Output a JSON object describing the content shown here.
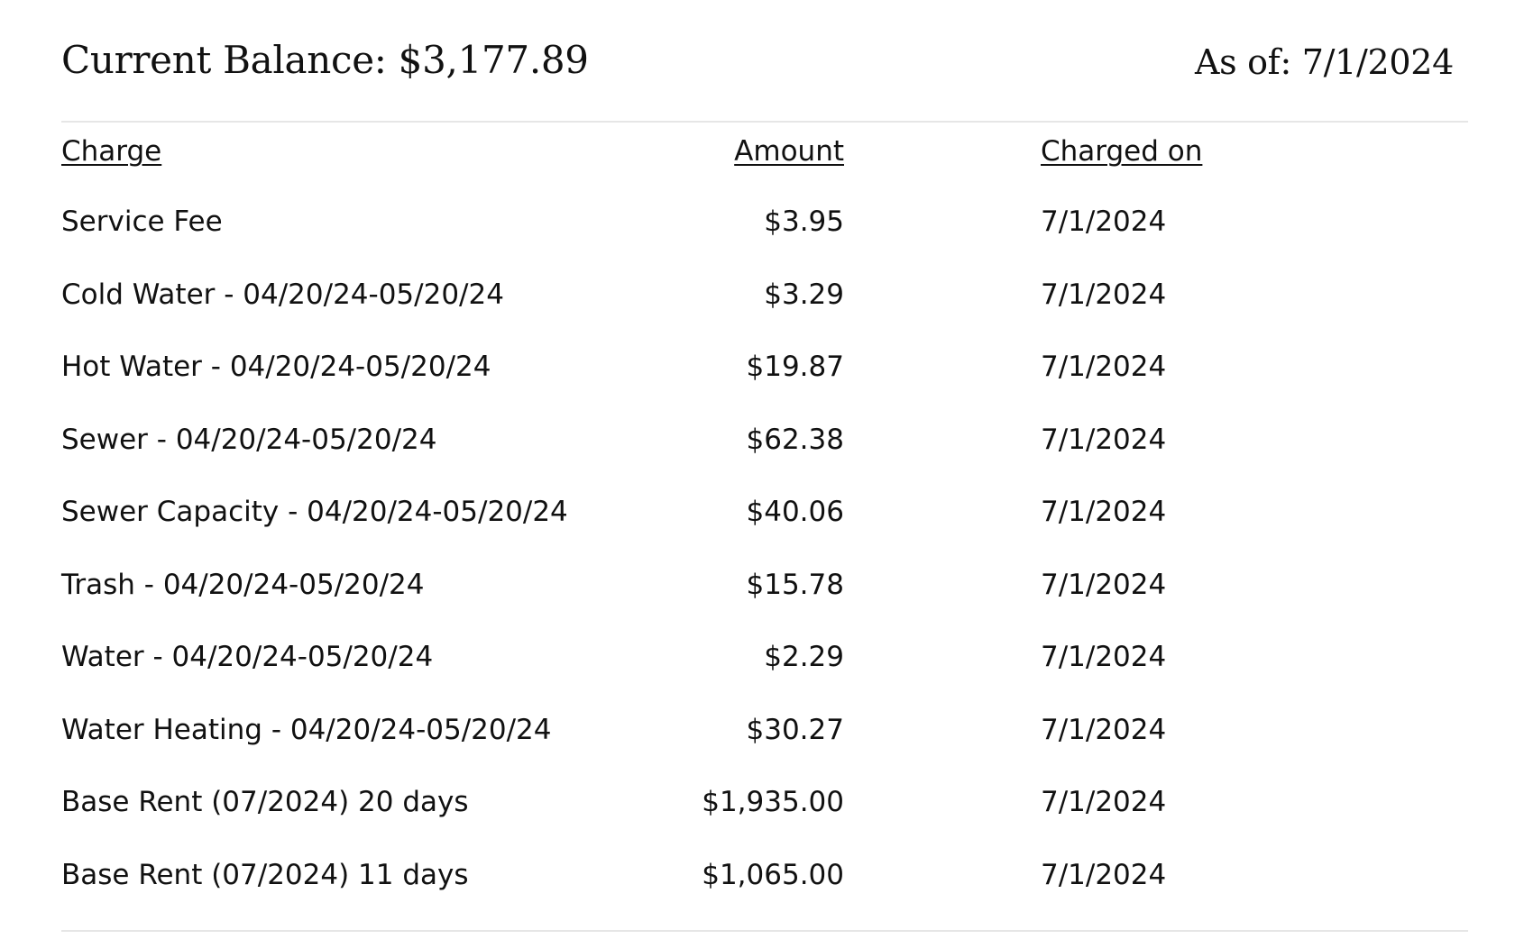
{
  "summary": {
    "balance_text": "Current Balance: $3,177.89",
    "as_of_text": "As of: 7/1/2024"
  },
  "table": {
    "headers": {
      "charge": "Charge",
      "amount": "Amount",
      "charged_on": "Charged on"
    },
    "rows": [
      {
        "charge": "Service Fee",
        "amount": "$3.95",
        "charged_on": "7/1/2024"
      },
      {
        "charge": "Cold Water - 04/20/24-05/20/24",
        "amount": "$3.29",
        "charged_on": "7/1/2024"
      },
      {
        "charge": "Hot Water - 04/20/24-05/20/24",
        "amount": "$19.87",
        "charged_on": "7/1/2024"
      },
      {
        "charge": "Sewer - 04/20/24-05/20/24",
        "amount": "$62.38",
        "charged_on": "7/1/2024"
      },
      {
        "charge": "Sewer Capacity - 04/20/24-05/20/24",
        "amount": "$40.06",
        "charged_on": "7/1/2024"
      },
      {
        "charge": "Trash - 04/20/24-05/20/24",
        "amount": "$15.78",
        "charged_on": "7/1/2024"
      },
      {
        "charge": "Water - 04/20/24-05/20/24",
        "amount": "$2.29",
        "charged_on": "7/1/2024"
      },
      {
        "charge": "Water Heating - 04/20/24-05/20/24",
        "amount": "$30.27",
        "charged_on": "7/1/2024"
      },
      {
        "charge": "Base Rent (07/2024) 20 days",
        "amount": "$1,935.00",
        "charged_on": "7/1/2024"
      },
      {
        "charge": "Base Rent (07/2024) 11 days",
        "amount": "$1,065.00",
        "charged_on": "7/1/2024"
      }
    ]
  }
}
